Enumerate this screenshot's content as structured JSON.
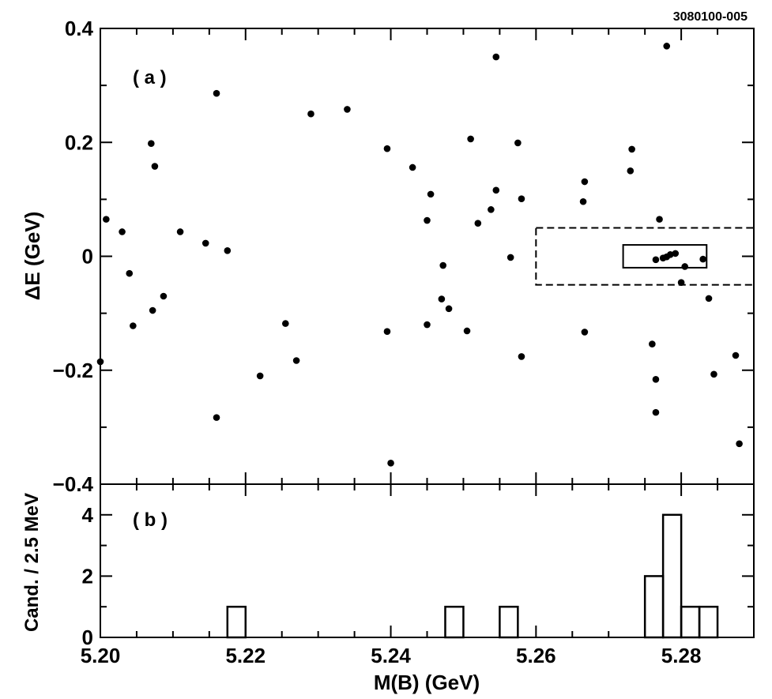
{
  "figure_id": "3080100-005",
  "chart_data": [
    {
      "type": "scatter",
      "panel_label": "( a )",
      "ylabel": "ΔE  (GeV)",
      "xlim": [
        5.2,
        5.29
      ],
      "ylim": [
        -0.4,
        0.4
      ],
      "y_ticks": [
        -0.4,
        -0.2,
        0,
        0.2,
        0.4
      ],
      "y_tick_labels": [
        "−0.4",
        "−0.2",
        "0",
        "0.2",
        "0.4"
      ],
      "grid": false,
      "regions": [
        {
          "style": "dashed",
          "x": [
            5.26,
            5.29
          ],
          "y": [
            -0.05,
            0.05
          ]
        },
        {
          "style": "solid",
          "x": [
            5.272,
            5.2835
          ],
          "y": [
            -0.02,
            0.02
          ]
        }
      ],
      "points": [
        [
          5.2,
          -0.185
        ],
        [
          5.2008,
          0.065
        ],
        [
          5.203,
          0.043
        ],
        [
          5.204,
          -0.03
        ],
        [
          5.2045,
          -0.122
        ],
        [
          5.207,
          0.198
        ],
        [
          5.2072,
          -0.095
        ],
        [
          5.2075,
          0.158
        ],
        [
          5.2087,
          -0.07
        ],
        [
          5.211,
          0.043
        ],
        [
          5.2145,
          0.023
        ],
        [
          5.216,
          0.286
        ],
        [
          5.216,
          -0.283
        ],
        [
          5.2175,
          0.01
        ],
        [
          5.222,
          -0.21
        ],
        [
          5.2255,
          -0.118
        ],
        [
          5.227,
          -0.183
        ],
        [
          5.229,
          0.25
        ],
        [
          5.234,
          0.258
        ],
        [
          5.2395,
          0.189
        ],
        [
          5.2395,
          -0.132
        ],
        [
          5.24,
          -0.363
        ],
        [
          5.243,
          0.156
        ],
        [
          5.245,
          0.063
        ],
        [
          5.245,
          -0.12
        ],
        [
          5.2455,
          0.109
        ],
        [
          5.247,
          -0.075
        ],
        [
          5.2472,
          -0.016
        ],
        [
          5.248,
          -0.092
        ],
        [
          5.2505,
          -0.131
        ],
        [
          5.251,
          0.206
        ],
        [
          5.252,
          0.058
        ],
        [
          5.2538,
          0.082
        ],
        [
          5.2545,
          0.116
        ],
        [
          5.2545,
          0.35
        ],
        [
          5.2565,
          -0.002
        ],
        [
          5.2575,
          0.199
        ],
        [
          5.258,
          0.101
        ],
        [
          5.258,
          -0.176
        ],
        [
          5.2665,
          0.096
        ],
        [
          5.2667,
          0.131
        ],
        [
          5.2667,
          -0.133
        ],
        [
          5.273,
          0.15
        ],
        [
          5.2732,
          0.188
        ],
        [
          5.276,
          -0.154
        ],
        [
          5.2765,
          -0.216
        ],
        [
          5.2765,
          -0.274
        ],
        [
          5.2765,
          -0.006
        ],
        [
          5.277,
          0.065
        ],
        [
          5.2775,
          -0.003
        ],
        [
          5.278,
          -0.001
        ],
        [
          5.278,
          0.369
        ],
        [
          5.2785,
          0.003
        ],
        [
          5.2792,
          0.005
        ],
        [
          5.28,
          -0.046
        ],
        [
          5.2805,
          -0.018
        ],
        [
          5.283,
          -0.005
        ],
        [
          5.2838,
          -0.074
        ],
        [
          5.2845,
          -0.207
        ],
        [
          5.2875,
          -0.174
        ],
        [
          5.288,
          -0.329
        ]
      ]
    },
    {
      "type": "histogram",
      "panel_label": "( b )",
      "xlabel": "M(B) (GeV)",
      "ylabel": "Cand. / 2.5 MeV",
      "xlim": [
        5.2,
        5.29
      ],
      "ylim": [
        0,
        5
      ],
      "y_ticks": [
        0,
        2,
        4
      ],
      "y_tick_labels": [
        "0",
        "2",
        "4"
      ],
      "x_ticks": [
        5.2,
        5.22,
        5.24,
        5.26,
        5.28
      ],
      "x_tick_labels": [
        "5.20",
        "5.22",
        "5.24",
        "5.26",
        "5.28"
      ],
      "bin_width": 0.0025,
      "bins": [
        {
          "x0": 5.2175,
          "count": 1
        },
        {
          "x0": 5.2475,
          "count": 1
        },
        {
          "x0": 5.255,
          "count": 1
        },
        {
          "x0": 5.275,
          "count": 2
        },
        {
          "x0": 5.2775,
          "count": 4
        },
        {
          "x0": 5.28,
          "count": 1
        },
        {
          "x0": 5.2825,
          "count": 1
        }
      ]
    }
  ]
}
